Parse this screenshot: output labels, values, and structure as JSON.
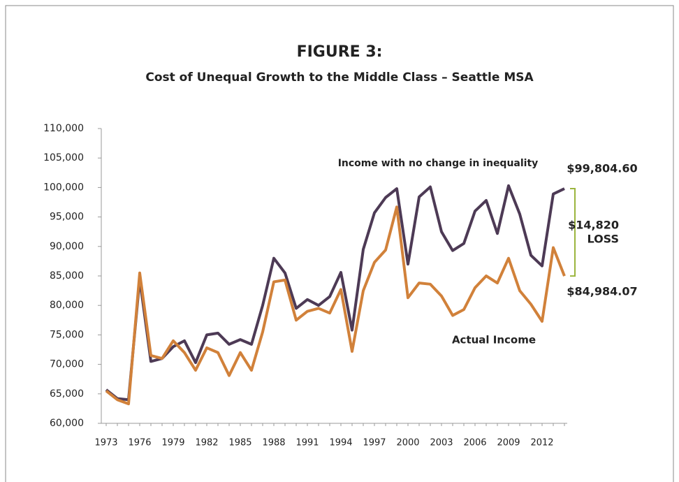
{
  "chart_data": {
    "type": "line",
    "title": "FIGURE 3:",
    "subtitle": "Cost of Unequal Growth to the Middle Class – Seattle MSA",
    "x": [
      1973,
      1974,
      1975,
      1976,
      1977,
      1978,
      1979,
      1980,
      1981,
      1982,
      1983,
      1984,
      1985,
      1986,
      1987,
      1988,
      1989,
      1990,
      1991,
      1992,
      1993,
      1994,
      1995,
      1996,
      1997,
      1998,
      1999,
      2000,
      2001,
      2002,
      2003,
      2004,
      2005,
      2006,
      2007,
      2008,
      2009,
      2010,
      2011,
      2012,
      2013,
      2014
    ],
    "series": [
      {
        "name": "Income with no change in inequality",
        "color": "#4d3a55",
        "values": [
          65700,
          64200,
          64000,
          84500,
          70500,
          71000,
          73000,
          74000,
          70300,
          75000,
          75300,
          73400,
          74200,
          73400,
          80000,
          88000,
          85500,
          79500,
          81000,
          80000,
          81500,
          85600,
          75800,
          89500,
          95700,
          98300,
          99800,
          87000,
          98400,
          100100,
          92500,
          89300,
          90500,
          96000,
          97800,
          92200,
          100300,
          95500,
          88500,
          86700,
          98900,
          99804.6
        ],
        "end_label": "$99,804.60"
      },
      {
        "name": "Actual Income",
        "color": "#d1813a",
        "values": [
          65500,
          64000,
          63300,
          85500,
          71500,
          71000,
          74000,
          72000,
          69000,
          72800,
          72000,
          68100,
          72000,
          69000,
          75500,
          84000,
          84300,
          77500,
          79000,
          79500,
          78700,
          82700,
          72200,
          82500,
          87300,
          89400,
          96700,
          81300,
          83800,
          83600,
          81600,
          78300,
          79300,
          83000,
          85000,
          83800,
          88000,
          82500,
          80200,
          77300,
          89800,
          84984.07
        ],
        "end_label": "$84,984.07"
      }
    ],
    "gap_annotation": [
      "$14,820",
      "LOSS"
    ],
    "gap_color": "#9bb53e",
    "xlim": [
      1973,
      2014
    ],
    "xticks": [
      1973,
      1976,
      1979,
      1982,
      1985,
      1988,
      1991,
      1994,
      1997,
      2000,
      2003,
      2006,
      2009,
      2012
    ],
    "ylim": [
      60000,
      110000
    ],
    "yticks": [
      {
        "value": 60000,
        "label": "60,000"
      },
      {
        "value": 65000,
        "label": "65,000"
      },
      {
        "value": 70000,
        "label": "70,000"
      },
      {
        "value": 75000,
        "label": "75,000"
      },
      {
        "value": 80000,
        "label": "80,000"
      },
      {
        "value": 85000,
        "label": "85,000"
      },
      {
        "value": 90000,
        "label": "90,000"
      },
      {
        "value": 95000,
        "label": "95,000"
      },
      {
        "value": 100000,
        "label": "100,000"
      },
      {
        "value": 105000,
        "label": "105,000"
      },
      {
        "value": 110000,
        "label": "110,000"
      }
    ],
    "title_color": "#d07a30"
  }
}
